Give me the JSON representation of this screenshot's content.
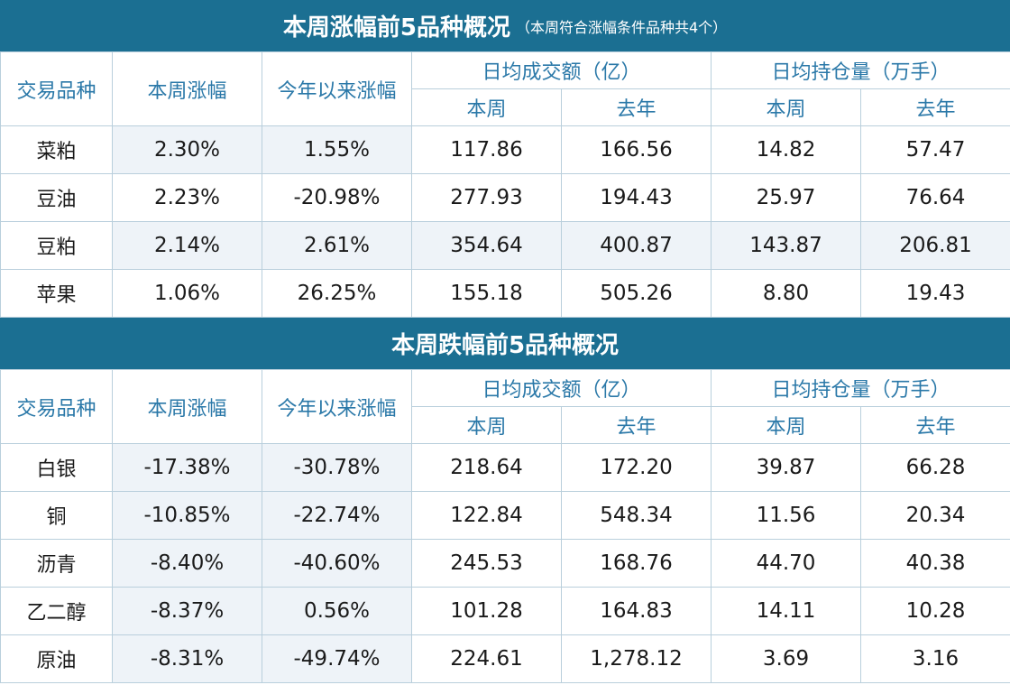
{
  "top": {
    "title": "本周涨幅前5品种概况",
    "subtitle": "（本周符合涨幅条件品种共4个）",
    "headers": {
      "variety": "交易品种",
      "week_change": "本周涨幅",
      "ytd_change": "今年以来涨幅",
      "avg_volume": "日均成交额（亿）",
      "avg_oi": "日均持仓量（万手）",
      "this_week": "本周",
      "last_year": "去年"
    },
    "rows": [
      [
        "菜粕",
        "2.30%",
        "1.55%",
        "117.86",
        "166.56",
        "14.82",
        "57.47"
      ],
      [
        "豆油",
        "2.23%",
        "-20.98%",
        "277.93",
        "194.43",
        "25.97",
        "76.64"
      ],
      [
        "豆粕",
        "2.14%",
        "2.61%",
        "354.64",
        "400.87",
        "143.87",
        "206.81"
      ],
      [
        "苹果",
        "1.06%",
        "26.25%",
        "155.18",
        "505.26",
        "8.80",
        "19.43"
      ]
    ]
  },
  "bottom": {
    "title": "本周跌幅前5品种概况",
    "headers": {
      "variety": "交易品种",
      "week_change": "本周涨幅",
      "ytd_change": "今年以来涨幅",
      "avg_volume": "日均成交额（亿）",
      "avg_oi": "日均持仓量（万手）",
      "this_week": "本周",
      "last_year": "去年"
    },
    "rows": [
      [
        "白银",
        "-17.38%",
        "-30.78%",
        "218.64",
        "172.20",
        "39.87",
        "66.28"
      ],
      [
        "铜",
        "-10.85%",
        "-22.74%",
        "122.84",
        "548.34",
        "11.56",
        "20.34"
      ],
      [
        "沥青",
        "-8.40%",
        "-40.60%",
        "245.53",
        "168.76",
        "44.70",
        "40.38"
      ],
      [
        "乙二醇",
        "-8.37%",
        "0.56%",
        "101.28",
        "164.83",
        "14.11",
        "10.28"
      ],
      [
        "原油",
        "-8.31%",
        "-49.74%",
        "224.61",
        "1,278.12",
        "3.69",
        "3.16"
      ]
    ]
  }
}
